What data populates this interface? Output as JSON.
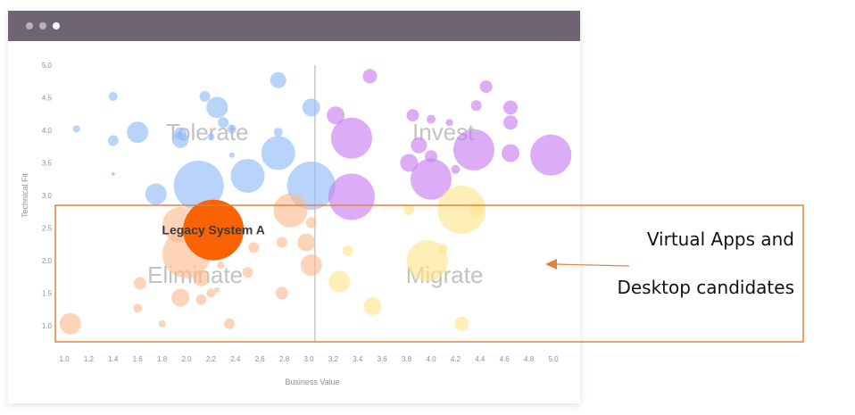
{
  "window": {
    "controls": [
      "window-dot-1",
      "window-dot-2",
      "window-dot-3"
    ],
    "control_colors": [
      "#b8b0ba",
      "#b8b0ba",
      "#ffffff"
    ],
    "bar_color": "#6f6472"
  },
  "callout": {
    "line1": "Virtual Apps and",
    "line2": "Desktop candidates",
    "box_color": "#e2823e",
    "arrow_color": "#e2823e"
  },
  "chart_data": {
    "type": "scatter",
    "title": "",
    "xlabel": "Business Value",
    "ylabel": "Technical Fit",
    "xlim": [
      1.0,
      5.0
    ],
    "ylim": [
      0.8,
      5.2
    ],
    "xticks": [
      "1.0",
      "1.2",
      "1.4",
      "1.6",
      "1.8",
      "2.0",
      "2.2",
      "2.4",
      "2.6",
      "2.8",
      "3.0",
      "3.2",
      "3.4",
      "3.6",
      "3.8",
      "4.0",
      "4.2",
      "4.4",
      "4.6",
      "4.8",
      "5.0"
    ],
    "yticks": [
      "1.0",
      "1.5",
      "2.0",
      "2.5",
      "3.0",
      "3.5",
      "4.0",
      "4.5",
      "5.0"
    ],
    "divider": {
      "x": 3.05
    },
    "quadrant_labels": [
      {
        "text": "Tolerate",
        "x": 2.17,
        "y": 3.97
      },
      {
        "text": "Invest",
        "x": 4.1,
        "y": 3.97
      },
      {
        "text": "Eliminate",
        "x": 2.07,
        "y": 1.78
      },
      {
        "text": "Migrate",
        "x": 4.11,
        "y": 1.78
      }
    ],
    "colors": {
      "Tolerate": "#8db9f7",
      "Invest": "#c77bf0",
      "Eliminate": "#fbb98e",
      "Migrate": "#fde58a",
      "Highlight": "#f96304"
    },
    "series": [
      {
        "name": "Tolerate",
        "points": [
          [
            1.1,
            4.02,
            4
          ],
          [
            1.4,
            4.52,
            5
          ],
          [
            1.4,
            3.84,
            6
          ],
          [
            1.6,
            3.97,
            12
          ],
          [
            1.95,
            3.95,
            7
          ],
          [
            1.95,
            3.85,
            9
          ],
          [
            2.25,
            4.35,
            12
          ],
          [
            2.15,
            4.52,
            6
          ],
          [
            2.3,
            4.12,
            6
          ],
          [
            2.37,
            4.02,
            5
          ],
          [
            2.2,
            3.9,
            4
          ],
          [
            2.37,
            3.62,
            3
          ],
          [
            2.75,
            4.77,
            9
          ],
          [
            2.75,
            3.97,
            5
          ],
          [
            2.75,
            3.65,
            19
          ],
          [
            3.02,
            4.35,
            10
          ],
          [
            1.4,
            3.33,
            2
          ],
          [
            1.75,
            3.02,
            12
          ],
          [
            2.1,
            3.15,
            28
          ],
          [
            2.5,
            3.3,
            19
          ],
          [
            3.02,
            3.15,
            27
          ]
        ]
      },
      {
        "name": "Invest",
        "points": [
          [
            3.5,
            4.83,
            8
          ],
          [
            4.45,
            4.67,
            7
          ],
          [
            3.22,
            4.23,
            10
          ],
          [
            3.85,
            4.23,
            7
          ],
          [
            4.0,
            4.17,
            5
          ],
          [
            4.15,
            4.12,
            4
          ],
          [
            4.37,
            4.38,
            6
          ],
          [
            4.65,
            4.35,
            8
          ],
          [
            4.65,
            4.12,
            8
          ],
          [
            3.35,
            3.88,
            23
          ],
          [
            3.9,
            3.77,
            9
          ],
          [
            4.0,
            3.6,
            7
          ],
          [
            4.35,
            3.7,
            23
          ],
          [
            3.82,
            3.5,
            10
          ],
          [
            4.2,
            3.4,
            5
          ],
          [
            4.65,
            3.65,
            10
          ],
          [
            4.98,
            3.62,
            23
          ],
          [
            4.0,
            3.25,
            23
          ],
          [
            3.35,
            2.98,
            26
          ]
        ]
      },
      {
        "name": "Eliminate",
        "points": [
          [
            1.95,
            2.55,
            20
          ],
          [
            2.0,
            2.1,
            27
          ],
          [
            2.55,
            2.2,
            6
          ],
          [
            2.28,
            1.93,
            4
          ],
          [
            2.5,
            1.82,
            6
          ],
          [
            2.12,
            1.73,
            9
          ],
          [
            1.62,
            1.65,
            7
          ],
          [
            2.25,
            1.55,
            3
          ],
          [
            2.2,
            1.5,
            5
          ],
          [
            1.95,
            1.43,
            10
          ],
          [
            2.12,
            1.4,
            6
          ],
          [
            1.6,
            1.27,
            5
          ],
          [
            1.8,
            1.03,
            4
          ],
          [
            2.35,
            1.03,
            6
          ],
          [
            1.05,
            1.03,
            12
          ],
          [
            2.85,
            2.77,
            19
          ],
          [
            2.78,
            2.28,
            6
          ],
          [
            2.98,
            2.28,
            10
          ],
          [
            3.02,
            2.58,
            6
          ],
          [
            3.02,
            1.93,
            12
          ],
          [
            2.78,
            1.5,
            7
          ]
        ]
      },
      {
        "name": "Migrate",
        "points": [
          [
            4.25,
            2.78,
            27
          ],
          [
            4.37,
            2.78,
            8
          ],
          [
            3.82,
            2.78,
            6
          ],
          [
            3.32,
            2.15,
            6
          ],
          [
            4.1,
            2.18,
            5
          ],
          [
            3.97,
            2.0,
            23
          ],
          [
            3.25,
            1.68,
            12
          ],
          [
            3.52,
            1.3,
            10
          ],
          [
            4.25,
            1.03,
            8
          ]
        ]
      },
      {
        "name": "Highlight",
        "points": [
          [
            2.22,
            2.47,
            34
          ]
        ]
      }
    ],
    "annotations": [
      {
        "text": "Legacy System A",
        "x": 2.22,
        "y": 2.47
      }
    ]
  }
}
